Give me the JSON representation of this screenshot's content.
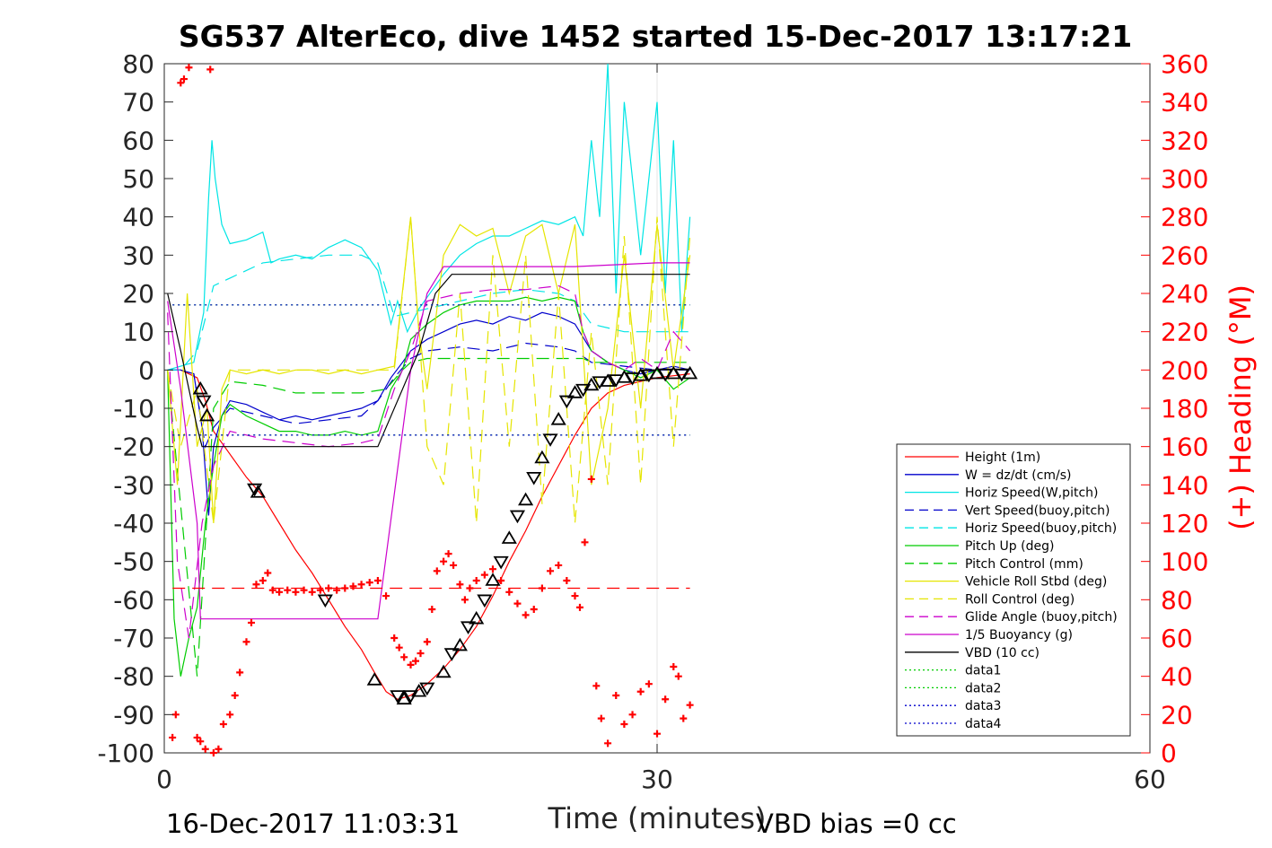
{
  "chart_data": {
    "type": "line",
    "title": "SG537 AlterEco, dive 1452 started 15-Dec-2017 13:17:21",
    "xlabel": "Time (minutes)",
    "ylabel_right": "(+) Heading (°M)",
    "xlim": [
      0,
      60
    ],
    "ylim_left": [
      -100,
      80
    ],
    "ylim_right": [
      0,
      360
    ],
    "x_ticks": [
      0,
      30,
      60
    ],
    "y_ticks_left": [
      80,
      70,
      60,
      50,
      40,
      30,
      20,
      10,
      0,
      -10,
      -20,
      -30,
      -40,
      -50,
      -60,
      -70,
      -80,
      -90,
      -100
    ],
    "y_ticks_right": [
      360,
      340,
      320,
      300,
      280,
      260,
      240,
      220,
      200,
      180,
      160,
      140,
      120,
      100,
      80,
      60,
      40,
      20,
      0
    ],
    "grid": "x only",
    "legend_position": "bottom-right",
    "footer_left": "16-Dec-2017 11:03:31",
    "footer_right": "VBD bias =0 cc",
    "colors": {
      "axis": "#262626",
      "heading": "#ff0000",
      "grid": "#e6e6e6"
    },
    "legend": [
      {
        "name": "Height (1m)",
        "color": "#ff0000",
        "style": "solid"
      },
      {
        "name": "W = dz/dt (cm/s)",
        "color": "#0000cc",
        "style": "solid"
      },
      {
        "name": "Horiz Speed(W,pitch)",
        "color": "#00e5e5",
        "style": "solid"
      },
      {
        "name": "Vert Speed(buoy,pitch)",
        "color": "#0000cc",
        "style": "dashed"
      },
      {
        "name": "Horiz Speed(buoy,pitch)",
        "color": "#00e5e5",
        "style": "dashed"
      },
      {
        "name": "Pitch Up (deg)",
        "color": "#00cc00",
        "style": "solid"
      },
      {
        "name": "Pitch Control (mm)",
        "color": "#00cc00",
        "style": "dashed"
      },
      {
        "name": "Vehicle Roll Stbd (deg)",
        "color": "#e5e500",
        "style": "solid"
      },
      {
        "name": "Roll Control (deg)",
        "color": "#e5e500",
        "style": "dashed"
      },
      {
        "name": "Glide Angle (buoy,pitch)",
        "color": "#cc00cc",
        "style": "dashed"
      },
      {
        "name": "1/5 Buoyancy (g)",
        "color": "#cc00cc",
        "style": "solid"
      },
      {
        "name": "VBD (10 cc)",
        "color": "#000000",
        "style": "solid"
      },
      {
        "name": "data1",
        "color": "#00cc00",
        "style": "dotted"
      },
      {
        "name": "data2",
        "color": "#00cc00",
        "style": "dotted"
      },
      {
        "name": "data3",
        "color": "#0000cc",
        "style": "dotted"
      },
      {
        "name": "data4",
        "color": "#0000cc",
        "style": "dotted"
      }
    ],
    "series": [
      {
        "name": "Height (1m)",
        "axis": "left",
        "color": "#ff0000",
        "style": "solid",
        "x": [
          0.2,
          1.0,
          2.0,
          2.5,
          3.0,
          4.0,
          5.0,
          6.0,
          7.0,
          8.0,
          9.0,
          10.0,
          11.0,
          12.0,
          12.8,
          13.5,
          14.2,
          15.0,
          16.0,
          17.0,
          18.0,
          19.0,
          20.0,
          21.0,
          22.0,
          23.0,
          24.0,
          25.0,
          26.0,
          27.0,
          28.0,
          29.0,
          30.0,
          31.0,
          32.0
        ],
        "y": [
          0,
          0,
          -2,
          -8,
          -16,
          -22,
          -28,
          -33,
          -40,
          -47,
          -53,
          -60,
          -67,
          -73,
          -79,
          -84,
          -86,
          -85,
          -82,
          -78,
          -73,
          -67,
          -59,
          -50,
          -42,
          -33,
          -25,
          -17,
          -10,
          -6,
          -4,
          -3,
          -2,
          -1.5,
          -1
        ]
      },
      {
        "name": "W = dz/dt (cm/s)",
        "axis": "left",
        "color": "#0000cc",
        "style": "solid",
        "x": [
          0.2,
          1.0,
          1.8,
          2.3,
          2.7,
          3.0,
          3.5,
          4.0,
          5.0,
          6.0,
          7.0,
          8.0,
          9.0,
          10.0,
          11.0,
          12.0,
          13.0,
          13.8,
          14.5,
          15.0,
          16.0,
          17.0,
          18.0,
          19.0,
          20.0,
          21.0,
          22.0,
          23.0,
          24.0,
          25.0,
          26.0,
          27.0,
          28.0,
          29.0,
          30.0,
          31.0,
          32.0
        ],
        "y": [
          0,
          0,
          -1,
          -15,
          -38,
          -20,
          -12,
          -8,
          -9,
          -11,
          -13,
          -12,
          -13,
          -12,
          -11,
          -10,
          -8,
          -2,
          2,
          5,
          8,
          10,
          12,
          13,
          12,
          14,
          13,
          15,
          14,
          12,
          5,
          2,
          0,
          -1,
          0,
          1,
          0
        ]
      },
      {
        "name": "Horiz Speed(W,pitch)",
        "axis": "left",
        "color": "#00e5e5",
        "style": "solid",
        "x": [
          0.2,
          1.0,
          1.8,
          2.4,
          2.7,
          2.9,
          3.1,
          3.5,
          4.0,
          5.0,
          6.0,
          6.5,
          7.0,
          8.0,
          9.0,
          10.0,
          11.0,
          12.0,
          13.0,
          13.8,
          14.2,
          14.8,
          15.5,
          16.0,
          17.0,
          18.0,
          19.0,
          20.0,
          21.0,
          22.0,
          23.0,
          24.0,
          25.0,
          25.5,
          26.0,
          26.5,
          27.0,
          27.5,
          28.0,
          29.0,
          30.0,
          30.5,
          31.0,
          31.5,
          32.0
        ],
        "y": [
          0,
          1,
          2,
          15,
          45,
          60,
          50,
          38,
          33,
          34,
          36,
          28,
          29,
          30,
          29,
          32,
          34,
          32,
          26,
          12,
          18,
          10,
          16,
          19,
          25,
          30,
          33,
          35,
          35,
          37,
          39,
          38,
          40,
          35,
          60,
          40,
          80,
          20,
          70,
          30,
          70,
          20,
          60,
          10,
          40
        ]
      },
      {
        "name": "Vert Speed(buoy,pitch)",
        "axis": "left",
        "color": "#0000cc",
        "style": "dashed",
        "x": [
          0.2,
          1.0,
          1.8,
          2.5,
          3.0,
          4.0,
          6.0,
          8.0,
          10.0,
          12.0,
          13.0,
          14.0,
          15.0,
          16.0,
          18.0,
          20.0,
          22.0,
          24.0,
          25.0,
          26.0,
          28.0,
          30.0,
          32.0
        ],
        "y": [
          0,
          0,
          -1,
          -20,
          -15,
          -10,
          -12,
          -14,
          -13,
          -12,
          -8,
          -2,
          3,
          5,
          6,
          5,
          7,
          6,
          5,
          2,
          1,
          0,
          0
        ]
      },
      {
        "name": "Horiz Speed(buoy,pitch)",
        "axis": "left",
        "color": "#00e5e5",
        "style": "dashed",
        "x": [
          0.2,
          1.0,
          2.0,
          3.0,
          4.0,
          6.0,
          8.0,
          10.0,
          12.0,
          13.0,
          14.0,
          16.0,
          18.0,
          20.0,
          22.0,
          24.0,
          25.0,
          26.0,
          28.0,
          30.0,
          32.0
        ],
        "y": [
          0,
          0,
          5,
          22,
          24,
          28,
          29,
          30,
          30,
          28,
          14,
          16,
          18,
          20,
          21,
          20,
          18,
          12,
          10,
          10,
          10
        ]
      },
      {
        "name": "Pitch Up (deg)",
        "axis": "left",
        "color": "#00cc00",
        "style": "solid",
        "x": [
          0.2,
          0.6,
          1.0,
          1.5,
          2.0,
          2.5,
          3.0,
          3.5,
          4.0,
          5.0,
          6.0,
          7.0,
          8.0,
          9.0,
          10.0,
          11.0,
          12.0,
          13.0,
          13.8,
          14.5,
          15.0,
          16.0,
          17.0,
          18.0,
          19.0,
          20.0,
          21.0,
          22.0,
          23.0,
          24.0,
          25.0,
          25.5,
          26.0,
          27.0,
          28.0,
          29.0,
          30.0,
          31.0,
          32.0
        ],
        "y": [
          0,
          -65,
          -80,
          -70,
          -62,
          -40,
          -25,
          -12,
          -9,
          -12,
          -14,
          -16,
          -16,
          -17,
          -17,
          -16,
          -17,
          -16,
          -5,
          0,
          8,
          12,
          15,
          17,
          18,
          18,
          18,
          19,
          18,
          19,
          18,
          10,
          5,
          2,
          0,
          -2,
          0,
          -5,
          -2
        ]
      },
      {
        "name": "Pitch Control (mm)",
        "axis": "left",
        "color": "#00cc00",
        "style": "dashed",
        "x": [
          0.2,
          2.0,
          3.0,
          4.0,
          6.0,
          8.0,
          10.0,
          12.0,
          13.5,
          14.5,
          15.0,
          16.0,
          18.0,
          20.0,
          22.0,
          24.0,
          25.5,
          26.0,
          28.0,
          30.0,
          32.0
        ],
        "y": [
          0,
          -80,
          -10,
          -3,
          -4,
          -6,
          -6,
          -6,
          -5,
          0,
          2,
          3,
          3,
          3,
          3,
          3,
          3,
          2,
          2,
          2,
          2
        ]
      },
      {
        "name": "Vehicle Roll Stbd (deg)",
        "axis": "left",
        "color": "#e5e500",
        "style": "solid",
        "x": [
          0.2,
          0.8,
          1.4,
          2.0,
          2.6,
          3.0,
          3.5,
          4.0,
          5.0,
          6.0,
          7.0,
          8.0,
          9.0,
          10.0,
          11.0,
          12.0,
          13.0,
          14.0,
          15.0,
          15.5,
          16.0,
          17.0,
          18.0,
          19.0,
          20.0,
          21.0,
          22.0,
          23.0,
          24.0,
          25.0,
          25.5,
          26.0,
          27.0,
          28.0,
          29.0,
          30.0,
          31.0,
          32.0
        ],
        "y": [
          0,
          -30,
          20,
          -20,
          -10,
          -40,
          -5,
          0,
          -1,
          0,
          -1,
          0,
          0,
          -1,
          0,
          -1,
          0,
          1,
          40,
          10,
          -5,
          30,
          38,
          35,
          37,
          20,
          35,
          38,
          20,
          38,
          5,
          -30,
          -10,
          30,
          -10,
          38,
          0,
          30
        ]
      },
      {
        "name": "Roll Control (deg)",
        "axis": "left",
        "color": "#e5e500",
        "style": "dashed",
        "x": [
          0.2,
          1.0,
          2.0,
          3.0,
          4.0,
          6.0,
          8.0,
          10.0,
          12.0,
          14.0,
          15.0,
          16.0,
          17.0,
          18.0,
          19.0,
          20.0,
          21.0,
          22.0,
          23.0,
          24.0,
          25.0,
          26.0,
          27.0,
          28.0,
          29.0,
          30.0,
          31.0,
          32.0
        ],
        "y": [
          0,
          -20,
          -5,
          -40,
          0,
          0,
          0,
          0,
          0,
          0,
          40,
          -20,
          -30,
          20,
          -40,
          30,
          -20,
          30,
          -35,
          20,
          -40,
          10,
          -30,
          35,
          -30,
          40,
          -20,
          35
        ]
      },
      {
        "name": "Glide Angle (buoy,pitch)",
        "axis": "left",
        "color": "#cc00cc",
        "style": "dashed",
        "x": [
          0.2,
          0.8,
          1.5,
          2.3,
          3.0,
          4.0,
          6.0,
          8.0,
          10.0,
          12.0,
          13.0,
          14.0,
          15.0,
          16.0,
          18.0,
          20.0,
          22.0,
          24.0,
          25.0,
          25.5,
          26.0,
          27.0,
          28.0,
          29.0,
          30.0,
          31.0,
          32.0
        ],
        "y": [
          15,
          -50,
          -70,
          -40,
          -25,
          -16,
          -18,
          -19,
          -20,
          -19,
          -18,
          -5,
          5,
          18,
          20,
          21,
          21,
          22,
          20,
          10,
          5,
          2,
          0,
          3,
          0,
          10,
          5
        ]
      },
      {
        "name": "1/5 Buoyancy (g)",
        "axis": "left",
        "color": "#cc00cc",
        "style": "solid",
        "x": [
          0.2,
          1.0,
          2.0,
          2.2,
          3.0,
          6.0,
          10.0,
          12.5,
          13.0,
          15.0,
          16.0,
          17.0,
          20.0,
          25.0,
          30.0,
          32.0
        ],
        "y": [
          18,
          -5,
          -40,
          -65,
          -65,
          -65,
          -65,
          -65,
          -65,
          0,
          20,
          27,
          27,
          27,
          28,
          28
        ]
      },
      {
        "name": "VBD (10 cc)",
        "axis": "left",
        "color": "#000000",
        "style": "solid",
        "x": [
          0.2,
          1.0,
          2.0,
          2.3,
          3.0,
          6.0,
          10.0,
          13.0,
          14.5,
          15.0,
          15.5,
          16.5,
          17.5,
          20.0,
          25.0,
          30.0,
          32.0
        ],
        "y": [
          20,
          5,
          -15,
          -20,
          -20,
          -20,
          -20,
          -20,
          -5,
          0,
          5,
          20,
          25,
          25,
          25,
          25,
          25
        ]
      },
      {
        "name": "data1",
        "axis": "left",
        "color": "#00cc00",
        "style": "dotted",
        "x": [
          0.5,
          32.0
        ],
        "y": [
          17,
          17
        ]
      },
      {
        "name": "data2",
        "axis": "left",
        "color": "#00cc00",
        "style": "dotted",
        "x": [
          0.5,
          32.0
        ],
        "y": [
          -17,
          -17
        ]
      },
      {
        "name": "data3",
        "axis": "left",
        "color": "#0000cc",
        "style": "dotted",
        "x": [
          0.5,
          32.0
        ],
        "y": [
          17,
          17
        ]
      },
      {
        "name": "data4",
        "axis": "left",
        "color": "#0000cc",
        "style": "dotted",
        "x": [
          0.5,
          32.0
        ],
        "y": [
          -17,
          -17
        ]
      },
      {
        "name": "Height reference",
        "axis": "left",
        "color": "#ff0000",
        "style": "dashed",
        "x": [
          0.5,
          32.0
        ],
        "y": [
          -57,
          -57
        ]
      }
    ],
    "heading_points": {
      "axis": "right",
      "marker": "+",
      "color": "#ff0000",
      "x": [
        0.5,
        0.7,
        1.0,
        1.2,
        1.5,
        2.0,
        2.2,
        2.5,
        2.8,
        3.0,
        3.3,
        3.6,
        4.0,
        4.3,
        4.6,
        5.0,
        5.3,
        5.6,
        6.0,
        6.3,
        6.6,
        7.0,
        7.5,
        8.0,
        8.5,
        9.0,
        9.5,
        10.0,
        10.5,
        11.0,
        11.5,
        12.0,
        12.5,
        13.0,
        13.5,
        14.0,
        14.3,
        14.6,
        15.0,
        15.3,
        15.6,
        16.0,
        16.3,
        16.6,
        17.0,
        17.3,
        17.6,
        18.0,
        18.3,
        18.6,
        19.0,
        19.5,
        20.0,
        20.5,
        21.0,
        21.5,
        22.0,
        22.5,
        23.0,
        23.5,
        24.0,
        24.5,
        25.0,
        25.3,
        25.6,
        26.0,
        26.3,
        26.6,
        27.0,
        27.5,
        28.0,
        28.5,
        29.0,
        29.5,
        30.0,
        30.5,
        31.0,
        31.3,
        31.6,
        32.0
      ],
      "y": [
        8,
        20,
        350,
        352,
        358,
        8,
        6,
        2,
        357,
        0,
        2,
        15,
        20,
        30,
        42,
        58,
        68,
        88,
        90,
        94,
        85,
        84,
        85,
        84,
        85,
        84,
        85,
        86,
        85,
        86,
        87,
        88,
        89,
        90,
        82,
        60,
        55,
        50,
        46,
        48,
        52,
        58,
        75,
        95,
        100,
        104,
        98,
        88,
        80,
        86,
        90,
        93,
        96,
        90,
        84,
        78,
        72,
        75,
        86,
        95,
        98,
        90,
        82,
        76,
        110,
        143,
        35,
        18,
        5,
        30,
        15,
        20,
        32,
        36,
        10,
        28,
        45,
        40,
        18,
        25
      ]
    },
    "triangle_points": {
      "axis": "left",
      "marker": "triangle",
      "color": "#000000",
      "x": [
        2.2,
        2.4,
        2.6,
        5.5,
        5.7,
        9.8,
        12.8,
        14.2,
        14.6,
        15.0,
        15.5,
        16.0,
        17.0,
        17.5,
        18.0,
        18.5,
        19.0,
        19.5,
        20.0,
        20.5,
        21.0,
        21.5,
        22.0,
        22.5,
        23.0,
        23.5,
        24.0,
        24.5,
        25.0,
        25.5,
        26.0,
        26.5,
        27.0,
        27.5,
        28.0,
        28.5,
        29.0,
        29.5,
        30.0,
        30.5,
        31.0,
        31.5,
        32.0
      ],
      "y": [
        -5,
        -8,
        -12,
        -31,
        -32,
        -60,
        -81,
        -85,
        -86,
        -85,
        -84,
        -83,
        -79,
        -74,
        -72,
        -67,
        -65,
        -60,
        -55,
        -50,
        -44,
        -38,
        -34,
        -28,
        -23,
        -18,
        -13,
        -8,
        -6,
        -5,
        -4,
        -3,
        -3,
        -2.5,
        -2,
        -2,
        -1.5,
        -1.2,
        -1,
        -1,
        -1,
        -1,
        -1
      ]
    }
  }
}
